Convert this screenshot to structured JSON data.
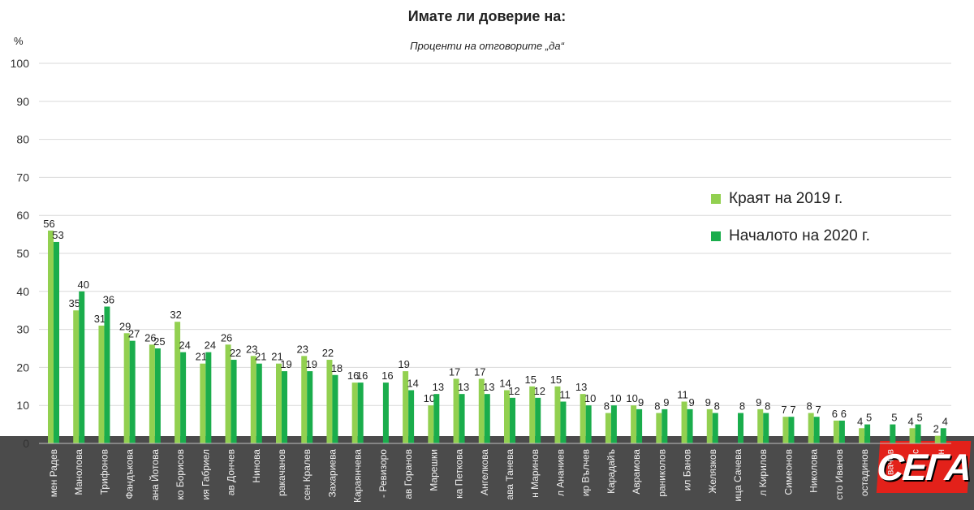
{
  "header": {
    "title": "Имате ли доверие на:",
    "subtitle": "Проценти на отговорите „да“",
    "unit": "%"
  },
  "legend": [
    {
      "label": "Краят на 2019 г.",
      "color": "#92d050"
    },
    {
      "label": "Началото на 2020 г.",
      "color": "#1aad4c"
    }
  ],
  "logo": {
    "text": "СЕГА"
  },
  "chart_data": {
    "type": "bar",
    "grid": true,
    "ylim": [
      0,
      100
    ],
    "yticks": [
      0,
      10,
      20,
      30,
      40,
      50,
      60,
      70,
      80,
      90,
      100
    ],
    "legend_position": "right",
    "categories": [
      "мен Радев",
      "Манолова",
      "Трифонов",
      "Фандъкова",
      "ана Йотова",
      "ко Борисов",
      "ия Габриел",
      "ав Дончев",
      "Нинова",
      "ракачанов",
      "сен Кралев",
      "Захариева",
      "Караянчева",
      "- Ревизоро",
      "ав Горанов",
      "Марешки",
      "ка Петкова",
      "Ангелкова",
      "ава Танева",
      "н Маринов",
      "л Ананиев",
      "ир Вълчев",
      "Карадайъ",
      "Аврамова",
      "раниколов",
      "ил Банов",
      "Желязков",
      "ица Сачева",
      "л Кирилов",
      "Симеонов",
      "Николова",
      "сто Иванов",
      "остадинов",
      "вачев",
      "с",
      "н"
    ],
    "series": [
      {
        "name": "Краят на 2019 г.",
        "values": [
          56,
          35,
          31,
          29,
          26,
          32,
          21,
          26,
          23,
          21,
          23,
          22,
          16,
          null,
          19,
          10,
          17,
          17,
          14,
          15,
          15,
          13,
          8,
          10,
          8,
          11,
          9,
          null,
          9,
          7,
          8,
          6,
          4,
          null,
          4,
          2
        ]
      },
      {
        "name": "Началото на 2020 г.",
        "values": [
          53,
          40,
          36,
          27,
          25,
          24,
          24,
          22,
          21,
          19,
          19,
          18,
          16,
          16,
          14,
          13,
          13,
          13,
          12,
          12,
          11,
          10,
          10,
          9,
          9,
          9,
          8,
          8,
          8,
          7,
          7,
          6,
          5,
          5,
          5,
          4
        ]
      }
    ]
  }
}
